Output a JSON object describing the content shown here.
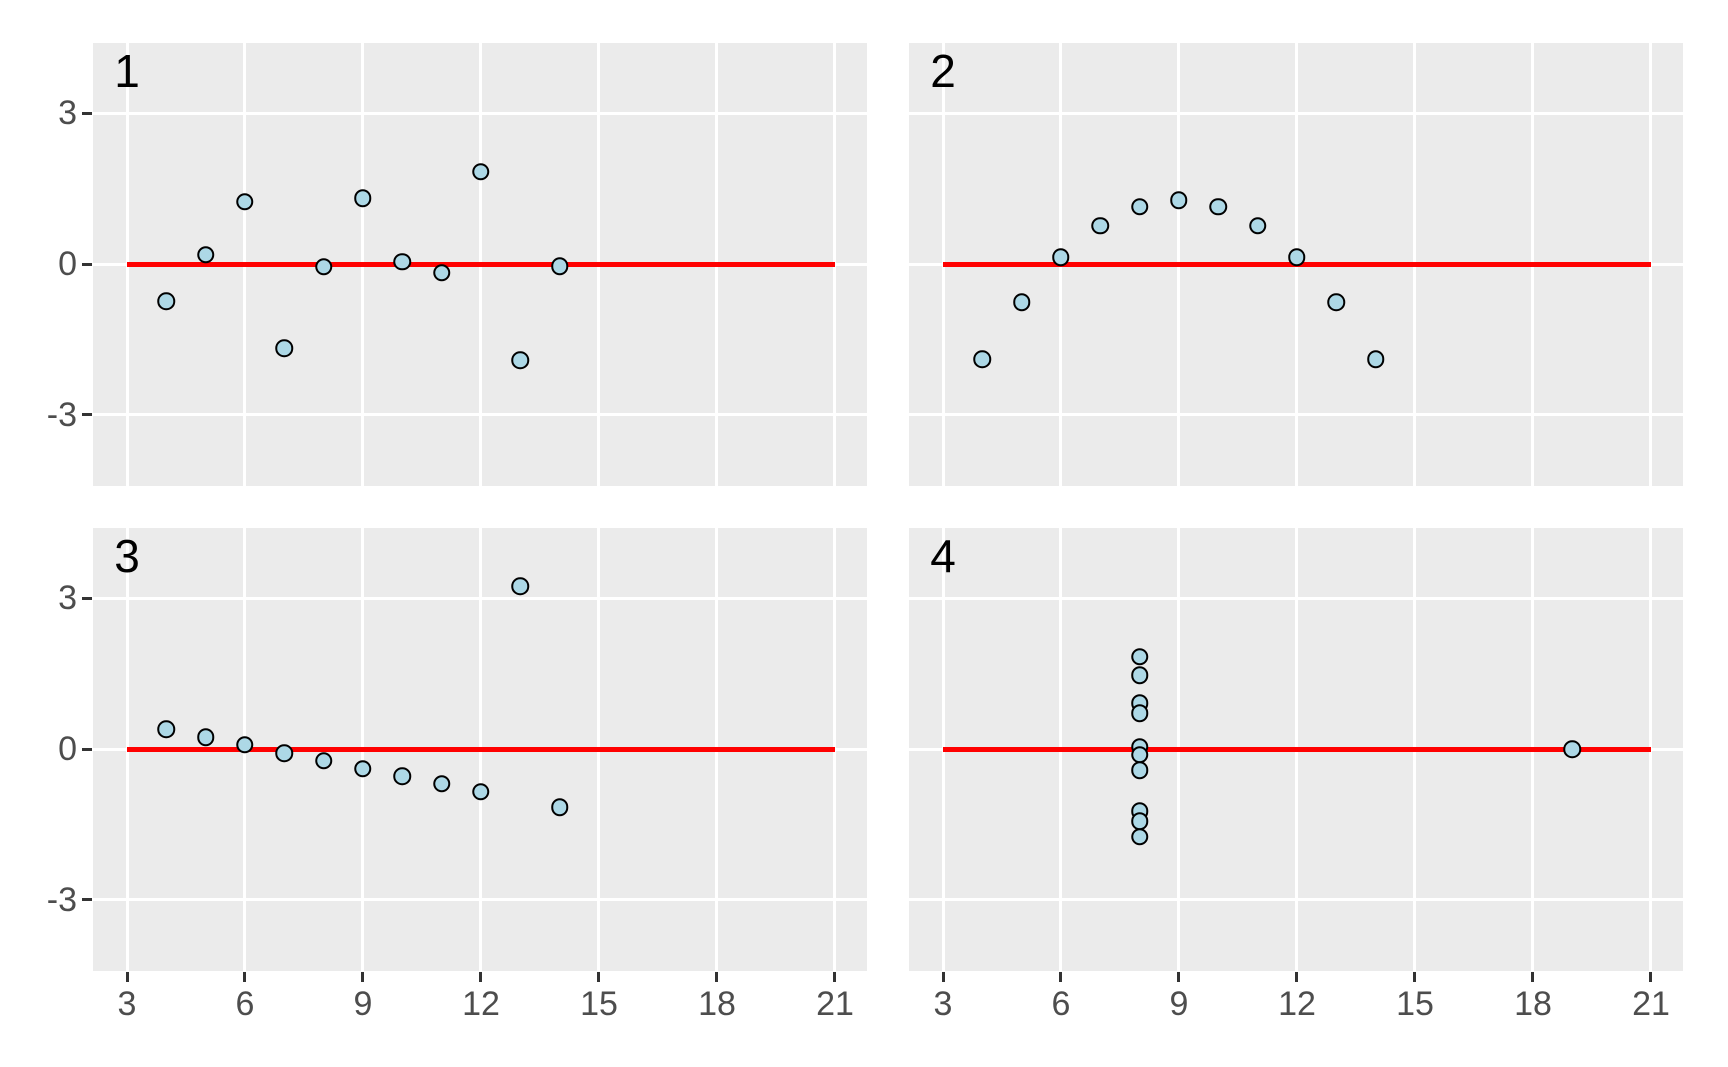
{
  "figure": {
    "background": "#FFFFFF",
    "panel_background": "#EBEBEB",
    "gridline_color": "#FFFFFF",
    "axis_text_color": "#4D4D4D",
    "tick_mark_color": "#333333",
    "facet_label_color": "#000000"
  },
  "chart_data": {
    "type": "scatter",
    "title": "",
    "xlabel": "",
    "ylabel": "",
    "legend": "none",
    "grid": "major-only-white-on-gray",
    "x_ticks": [
      3,
      6,
      9,
      12,
      15,
      18,
      21
    ],
    "y_ticks": [
      3,
      0,
      -3
    ],
    "xlim": [
      2.1,
      21.9
    ],
    "ylim": [
      -4.4,
      4.4
    ],
    "point_style": {
      "fill": "#ADD8E6",
      "stroke": "#000000"
    },
    "reference_line": {
      "y": 0,
      "x_from": 3,
      "x_to": 21,
      "color": "#FF0000"
    },
    "facet_label_position": {
      "x": 3,
      "y": 3.85
    },
    "facets": [
      {
        "label": "1",
        "points": [
          [
            4,
            -0.74
          ],
          [
            5,
            0.18
          ],
          [
            6,
            1.24
          ],
          [
            7,
            -1.68
          ],
          [
            8,
            -0.05
          ],
          [
            9,
            1.31
          ],
          [
            10,
            0.04
          ],
          [
            11,
            -0.17
          ],
          [
            12,
            1.84
          ],
          [
            13,
            -1.92
          ],
          [
            14,
            -0.04
          ]
        ]
      },
      {
        "label": "2",
        "points": [
          [
            4,
            -1.9
          ],
          [
            5,
            -0.76
          ],
          [
            6,
            0.13
          ],
          [
            7,
            0.76
          ],
          [
            8,
            1.14
          ],
          [
            9,
            1.27
          ],
          [
            10,
            1.14
          ],
          [
            11,
            0.76
          ],
          [
            12,
            0.13
          ],
          [
            13,
            -0.76
          ],
          [
            14,
            -1.9
          ]
        ]
      },
      {
        "label": "3",
        "points": [
          [
            4,
            0.39
          ],
          [
            5,
            0.23
          ],
          [
            6,
            0.08
          ],
          [
            7,
            -0.08
          ],
          [
            8,
            -0.23
          ],
          [
            9,
            -0.39
          ],
          [
            10,
            -0.54
          ],
          [
            11,
            -0.69
          ],
          [
            12,
            -0.85
          ],
          [
            13,
            3.24
          ],
          [
            14,
            -1.16
          ]
        ]
      },
      {
        "label": "4",
        "points": [
          [
            8,
            1.84
          ],
          [
            8,
            1.47
          ],
          [
            8,
            0.91
          ],
          [
            8,
            0.71
          ],
          [
            8,
            0.04
          ],
          [
            8,
            -0.11
          ],
          [
            8,
            -0.42
          ],
          [
            8,
            -1.24
          ],
          [
            8,
            -1.44
          ],
          [
            8,
            -1.75
          ],
          [
            19,
            0.0
          ]
        ]
      }
    ]
  }
}
